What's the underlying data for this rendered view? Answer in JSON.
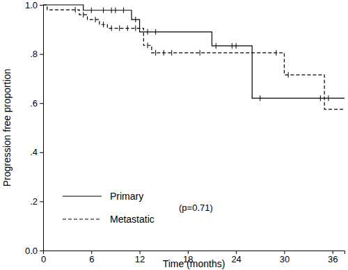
{
  "chart_data": {
    "type": "line",
    "x_label": "Time (months)",
    "y_label": "Progression free proportion",
    "annotation": "(p=0.71)",
    "xlim": [
      0,
      37.5
    ],
    "ylim": [
      0,
      1.0
    ],
    "xticks": [
      0,
      6,
      12,
      18,
      24,
      30,
      36
    ],
    "yticks": [
      {
        "value": 0,
        "label": "0.0"
      },
      {
        "value": 0.2,
        "label": ".2"
      },
      {
        "value": 0.4,
        "label": ".4"
      },
      {
        "value": 0.6,
        "label": ".6"
      },
      {
        "value": 0.8,
        "label": ".8"
      },
      {
        "value": 1.0,
        "label": "1.0"
      }
    ],
    "legend": "lower left",
    "marker": "plus",
    "series": [
      {
        "name": "Primary",
        "color": "#000000",
        "line_style": "solid",
        "x": [
          0,
          5,
          11,
          12,
          21,
          26,
          37.5
        ],
        "values": [
          1.0,
          0.978,
          0.94,
          0.89,
          0.833,
          0.62,
          0.62
        ],
        "censored_x": [
          6,
          7.5,
          8.5,
          9,
          10,
          11.5,
          13,
          14,
          21.5,
          23.5,
          24,
          27,
          34.5,
          35.5
        ],
        "censored_values": [
          0.978,
          0.978,
          0.978,
          0.978,
          0.978,
          0.94,
          0.89,
          0.89,
          0.833,
          0.833,
          0.833,
          0.62,
          0.62,
          0.62
        ]
      },
      {
        "name": "Metastatic",
        "color": "#000000",
        "line_style": "dashed",
        "x": [
          0,
          0.5,
          4.5,
          5.5,
          7,
          8,
          12.5,
          13.5,
          30,
          35,
          37.5
        ],
        "values": [
          1.0,
          0.98,
          0.96,
          0.94,
          0.92,
          0.905,
          0.835,
          0.805,
          0.715,
          0.575,
          0.575
        ],
        "censored_x": [
          4,
          5,
          6.5,
          7.5,
          8.5,
          9.5,
          10.5,
          11.5,
          13,
          14,
          15,
          16,
          19.5,
          29,
          30.5
        ],
        "censored_values": [
          0.98,
          0.96,
          0.94,
          0.92,
          0.905,
          0.905,
          0.905,
          0.905,
          0.835,
          0.805,
          0.805,
          0.805,
          0.805,
          0.805,
          0.715
        ]
      }
    ]
  }
}
